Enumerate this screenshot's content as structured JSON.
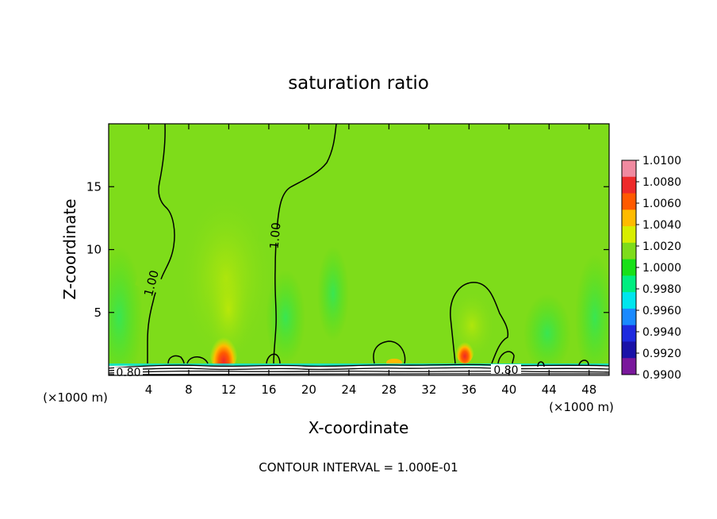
{
  "chart_data": {
    "type": "heatmap",
    "title": "saturation ratio",
    "xlabel": "X-coordinate",
    "ylabel": "Z-coordinate",
    "x_unit_left": "(×1000 m)",
    "x_unit_right": "(×1000 m)",
    "xlim": [
      0,
      50
    ],
    "ylim": [
      0,
      20
    ],
    "x_ticks": [
      "4",
      "8",
      "12",
      "16",
      "20",
      "24",
      "28",
      "32",
      "36",
      "40",
      "44",
      "48"
    ],
    "y_ticks": [
      "5",
      "10",
      "15"
    ],
    "colorbar": {
      "labels": [
        "1.0100",
        "1.0080",
        "1.0060",
        "1.0040",
        "1.0020",
        "1.0000",
        "0.9980",
        "0.9960",
        "0.9940",
        "0.9920",
        "0.9900"
      ],
      "colors": [
        "#f08aa0",
        "#ee2a2a",
        "#ff5a00",
        "#ffbb00",
        "#d8ee00",
        "#7edc1a",
        "#18e018",
        "#00ee80",
        "#00e6ee",
        "#1a8aff",
        "#1e2adf",
        "#1a12a8",
        "#7a189c"
      ]
    },
    "contour_labels": [
      "1.00",
      "1.00",
      "0.80",
      "0.80"
    ],
    "footer": "CONTOUR INTERVAL = 1.000E-01",
    "warm_cores": [
      {
        "x": 11.5,
        "z": 1.5,
        "peak": 1.009
      },
      {
        "x": 35.5,
        "z": 1.8,
        "peak": 1.008
      },
      {
        "x": 28.5,
        "z": 1.2,
        "peak": 1.004
      }
    ]
  }
}
